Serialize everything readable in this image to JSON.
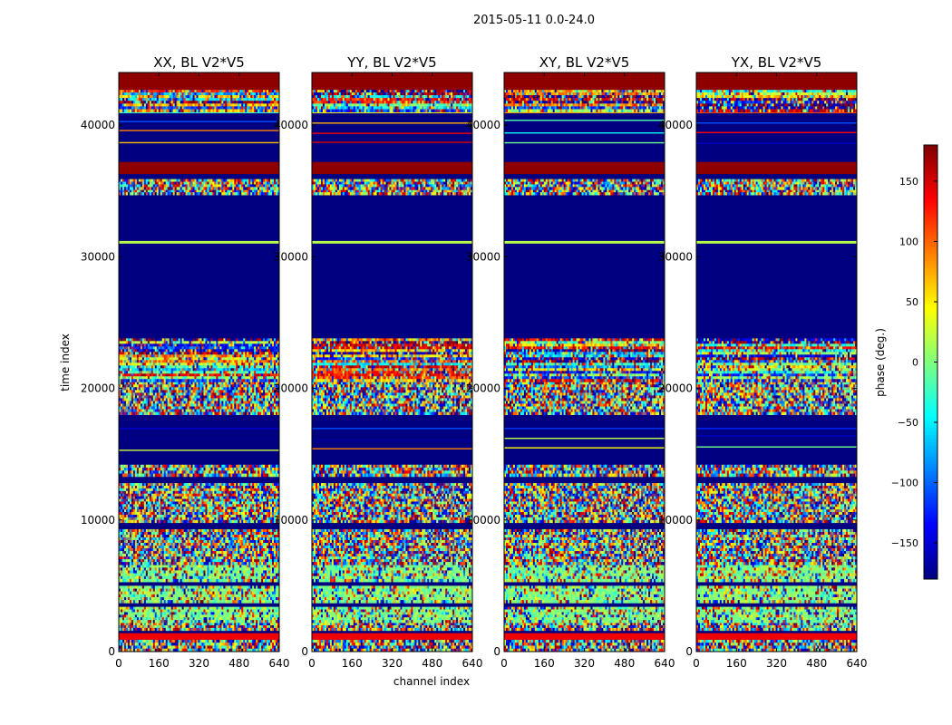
{
  "chart_data": {
    "type": "heatmap",
    "suptitle": "2015-05-11 0.0-24.0",
    "xlabel": "channel index",
    "ylabel": "time index",
    "xlim": [
      0,
      640
    ],
    "ylim": [
      0,
      44000
    ],
    "xticks": [
      "0",
      "160",
      "320",
      "480",
      "640"
    ],
    "xtick_values": [
      0,
      160,
      320,
      480,
      640
    ],
    "yticks": [
      "0",
      "10000",
      "20000",
      "30000",
      "40000"
    ],
    "ytick_values": [
      0,
      10000,
      20000,
      30000,
      40000
    ],
    "panels": [
      {
        "title": "XX, BL V2*V5",
        "seed": 11
      },
      {
        "title": "YY, BL V2*V5",
        "seed": 23
      },
      {
        "title": "XY, BL V2*V5",
        "seed": 37
      },
      {
        "title": "YX, BL V2*V5",
        "seed": 51
      }
    ],
    "colorbar": {
      "label": "phase (deg.)",
      "colormap": "jet",
      "range": [
        -180,
        180
      ],
      "ticks": [
        "150",
        "100",
        "50",
        "0",
        "−50",
        "−100",
        "−150"
      ],
      "tick_values": [
        150,
        100,
        50,
        0,
        -50,
        -100,
        -150
      ]
    },
    "bands": [
      {
        "from": 0,
        "to": 900,
        "kind": "noise"
      },
      {
        "from": 900,
        "to": 1400,
        "kind": "stripe",
        "phase": 140
      },
      {
        "from": 1400,
        "to": 1600,
        "kind": "flag"
      },
      {
        "from": 1600,
        "to": 2200,
        "kind": "noise"
      },
      {
        "from": 2200,
        "to": 3400,
        "kind": "green"
      },
      {
        "from": 3400,
        "to": 3700,
        "kind": "flag"
      },
      {
        "from": 3700,
        "to": 5000,
        "kind": "green"
      },
      {
        "from": 5000,
        "to": 5300,
        "kind": "flag"
      },
      {
        "from": 5300,
        "to": 6600,
        "kind": "green"
      },
      {
        "from": 6600,
        "to": 9300,
        "kind": "noise"
      },
      {
        "from": 9300,
        "to": 9800,
        "kind": "flag"
      },
      {
        "from": 9800,
        "to": 12800,
        "kind": "noise"
      },
      {
        "from": 12800,
        "to": 13300,
        "kind": "flag"
      },
      {
        "from": 13300,
        "to": 14200,
        "kind": "noise"
      },
      {
        "from": 14200,
        "to": 15000,
        "kind": "flag"
      },
      {
        "from": 15000,
        "to": 17000,
        "kind": "flagstripes"
      },
      {
        "from": 17000,
        "to": 18000,
        "kind": "flag"
      },
      {
        "from": 18000,
        "to": 20500,
        "kind": "noise"
      },
      {
        "from": 20500,
        "to": 23800,
        "kind": "striped"
      },
      {
        "from": 23800,
        "to": 31000,
        "kind": "flag"
      },
      {
        "from": 31000,
        "to": 31200,
        "kind": "stripe",
        "phase": 20
      },
      {
        "from": 31200,
        "to": 34700,
        "kind": "flag"
      },
      {
        "from": 34700,
        "to": 35100,
        "kind": "noise"
      },
      {
        "from": 35100,
        "to": 35900,
        "kind": "noise"
      },
      {
        "from": 35900,
        "to": 36300,
        "kind": "flag"
      },
      {
        "from": 36300,
        "to": 37200,
        "kind": "top"
      },
      {
        "from": 37200,
        "to": 38300,
        "kind": "flag"
      },
      {
        "from": 38300,
        "to": 41000,
        "kind": "flagstripes"
      },
      {
        "from": 41000,
        "to": 42700,
        "kind": "striped"
      },
      {
        "from": 42700,
        "to": 44000,
        "kind": "top"
      }
    ]
  }
}
